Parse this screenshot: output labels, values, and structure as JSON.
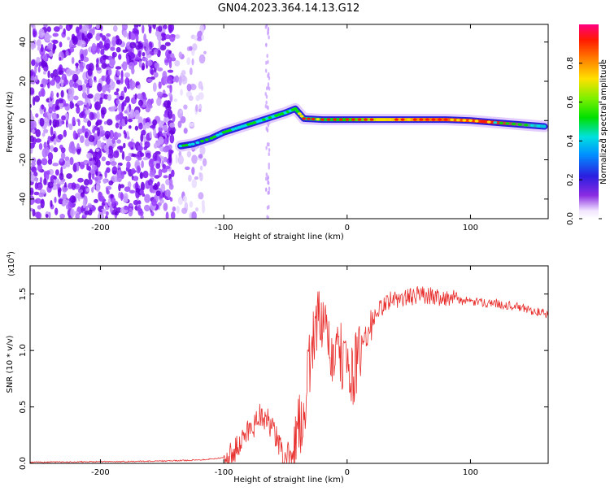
{
  "page": {
    "title": "GN04.2023.364.14.13.G12"
  },
  "chart_data": [
    {
      "type": "heatmap",
      "xlabel": "Height of straight line (km)",
      "ylabel": "Frequency (Hz)",
      "xlim": [
        -257,
        163
      ],
      "ylim": [
        -50,
        49
      ],
      "xticks": [
        -200,
        -100,
        0,
        100
      ],
      "yticks": [
        -40,
        -20,
        0,
        20,
        40
      ],
      "ridge": {
        "x": [
          -135,
          -125,
          -110,
          -100,
          -90,
          -80,
          -70,
          -60,
          -50,
          -42,
          -35,
          -20,
          0,
          20,
          40,
          60,
          80,
          100,
          120,
          140,
          160
        ],
        "y": [
          -13,
          -12,
          -9,
          -6,
          -4,
          -2,
          0,
          2,
          4,
          6,
          1,
          0.5,
          0.5,
          0.5,
          0.5,
          0.5,
          0.5,
          0,
          -1,
          -2,
          -3
        ]
      },
      "colorbar": {
        "label": "Normalized spectral amplitude",
        "ticks": [
          "0.0",
          "0.2",
          "0.4",
          "0.6",
          "0.8"
        ],
        "tick_values": [
          0.0,
          0.2,
          0.4,
          0.6,
          0.8
        ],
        "range": [
          0,
          1
        ]
      }
    },
    {
      "type": "line",
      "xlabel": "Height of straight line (km)",
      "ylabel": "SNR (10 * v/v)",
      "multiplier": "(x10",
      "multiplier_exp": "4",
      "xlim": [
        -257,
        163
      ],
      "ylim": [
        0,
        1.75
      ],
      "xticks": [
        -200,
        -100,
        0,
        100
      ],
      "yticks": [
        "0.0",
        "0.5",
        "1.0",
        "1.5"
      ],
      "ytick_values": [
        0.0,
        0.5,
        1.0,
        1.5
      ],
      "series": [
        {
          "color": "#e8312f",
          "x": [
            -257,
            -200,
            -150,
            -120,
            -110,
            -100,
            -95,
            -90,
            -85,
            -80,
            -75,
            -70,
            -65,
            -60,
            -55,
            -50,
            -45,
            -40,
            -35,
            -30,
            -25,
            -20,
            -15,
            -10,
            -5,
            0,
            5,
            10,
            15,
            20,
            25,
            30,
            35,
            40,
            50,
            60,
            70,
            80,
            90,
            100,
            120,
            140,
            163
          ],
          "values": [
            0.01,
            0.015,
            0.02,
            0.03,
            0.04,
            0.05,
            0.07,
            0.12,
            0.2,
            0.3,
            0.35,
            0.45,
            0.38,
            0.3,
            0.15,
            0.05,
            0.1,
            0.25,
            0.5,
            0.9,
            1.3,
            1.2,
            1.05,
            0.9,
            0.95,
            0.85,
            0.8,
            0.95,
            1.1,
            1.25,
            1.35,
            1.4,
            1.45,
            1.45,
            1.47,
            1.5,
            1.48,
            1.47,
            1.45,
            1.43,
            1.42,
            1.38,
            1.32
          ]
        }
      ]
    }
  ]
}
